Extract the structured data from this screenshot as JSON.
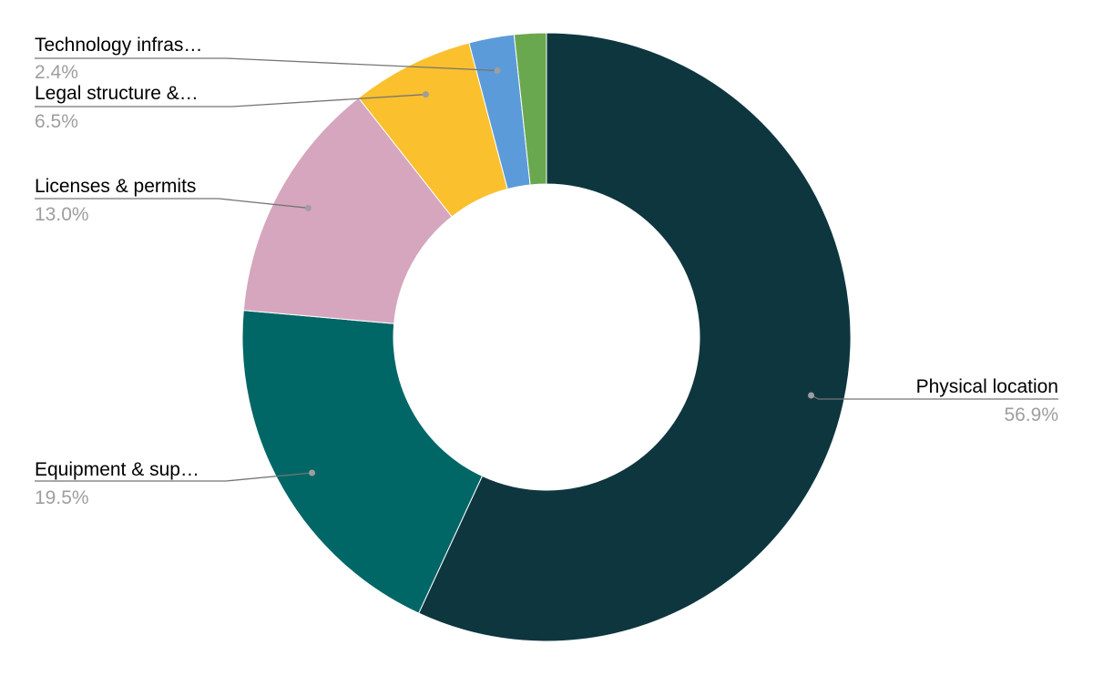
{
  "chart_data": {
    "type": "pie",
    "donut": true,
    "title": "",
    "legend": "none",
    "slices": [
      {
        "label": "Physical location",
        "value": 56.9,
        "value_label": "56.9%",
        "color": "#0e363f"
      },
      {
        "label": "Equipment & sup…",
        "value": 19.5,
        "value_label": "19.5%",
        "color": "#006666"
      },
      {
        "label": "Licenses & permits",
        "value": 13.0,
        "value_label": "13.0%",
        "color": "#d5a6bd"
      },
      {
        "label": "Legal structure &…",
        "value": 6.5,
        "value_label": "6.5%",
        "color": "#fbc02d"
      },
      {
        "label": "Technology infras…",
        "value": 2.4,
        "value_label": "2.4%",
        "color": "#5c9bd9"
      },
      {
        "label": "",
        "value": 1.7,
        "value_label": "",
        "color": "#6aa84f"
      }
    ]
  }
}
